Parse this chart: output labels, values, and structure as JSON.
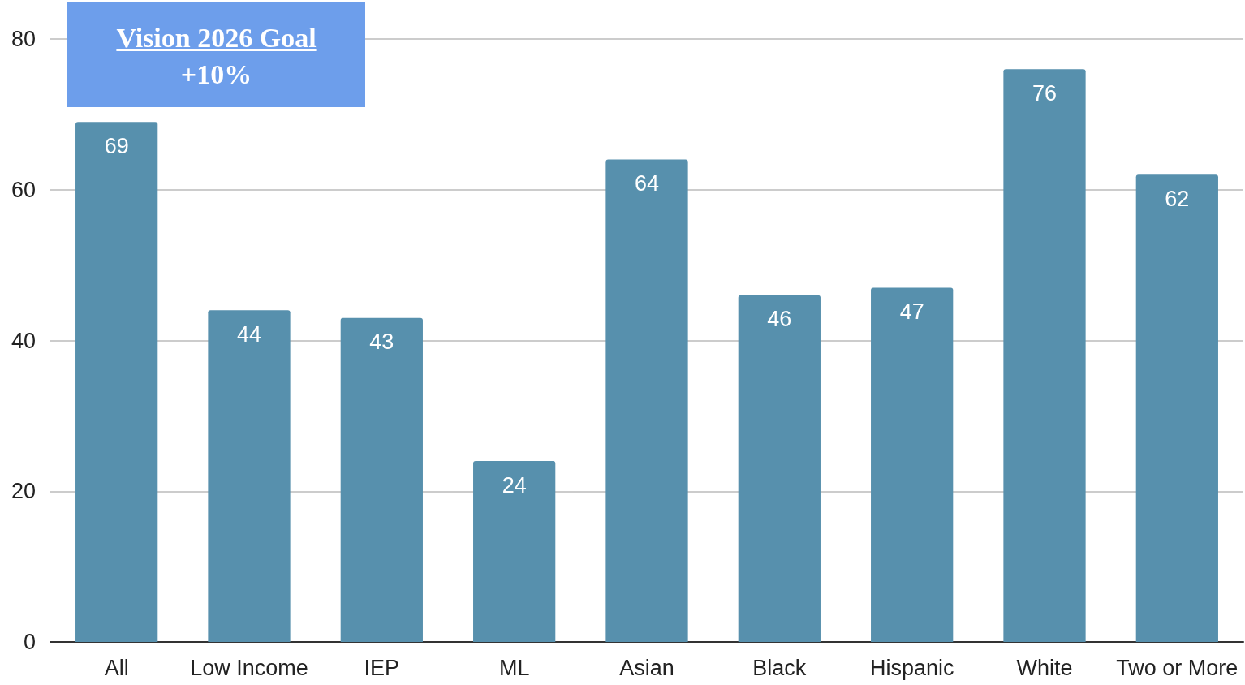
{
  "chart_data": {
    "type": "bar",
    "categories": [
      "All",
      "Low Income",
      "IEP",
      "ML",
      "Asian",
      "Black",
      "Hispanic",
      "White",
      "Two or More"
    ],
    "values": [
      69,
      44,
      43,
      24,
      64,
      46,
      47,
      76,
      62
    ],
    "color": "#5790ad",
    "ylim": [
      0,
      80
    ],
    "yticks": [
      0,
      20,
      40,
      60,
      80
    ],
    "grid": "y",
    "data_labels": true,
    "annotations": [
      "Vision 2026 Goal",
      "+10%"
    ]
  }
}
